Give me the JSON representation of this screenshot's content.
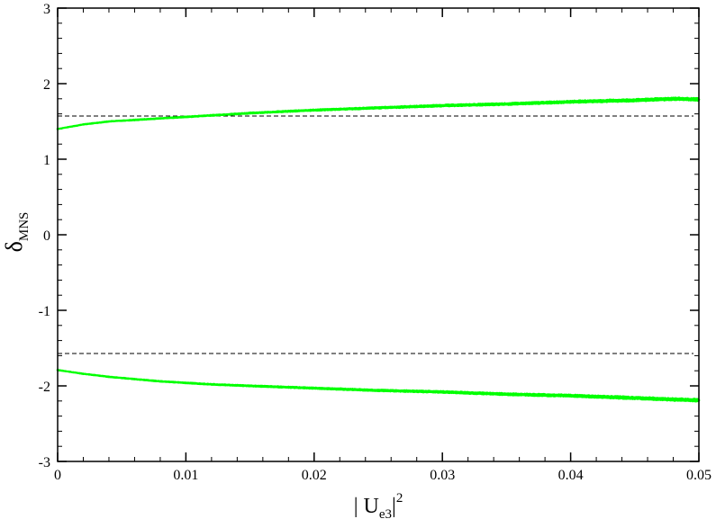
{
  "chart_data": {
    "type": "scatter",
    "title": "",
    "xlabel_main": "| U",
    "xlabel_sub": "e3",
    "xlabel_bar": "|",
    "xlabel_sup": "2",
    "ylabel_main": "δ",
    "ylabel_sub": "MNS",
    "xlim": [
      0,
      0.05
    ],
    "ylim": [
      -3,
      3
    ],
    "x_ticks": [
      0,
      0.01,
      0.02,
      0.03,
      0.04,
      0.05
    ],
    "x_tick_labels": [
      "0",
      "0.01",
      "0.02",
      "0.03",
      "0.04",
      "0.05"
    ],
    "y_ticks": [
      -3,
      -2,
      -1,
      0,
      1,
      2,
      3
    ],
    "y_tick_labels": [
      "-3",
      "-2",
      "-1",
      "0",
      "1",
      "2",
      "3"
    ],
    "x_minor_step": 0.002,
    "y_minor_step": 0.2,
    "grid": false,
    "reference_lines": [
      {
        "y": 1.5708,
        "style": "dashed",
        "color": "#000000"
      },
      {
        "y": -1.5708,
        "style": "dashed",
        "color": "#000000"
      }
    ],
    "series": [
      {
        "color": "#00ff00",
        "x": [
          0,
          0.002,
          0.004,
          0.006,
          0.008,
          0.01,
          0.012,
          0.015,
          0.02,
          0.025,
          0.03,
          0.035,
          0.04,
          0.045,
          0.048,
          0.05
        ],
        "y": [
          1.4,
          1.46,
          1.5,
          1.52,
          1.54,
          1.56,
          1.58,
          1.61,
          1.65,
          1.68,
          1.71,
          1.73,
          1.76,
          1.78,
          1.8,
          1.79
        ],
        "spread": 0.025
      },
      {
        "color": "#00ff00",
        "x": [
          0,
          0.002,
          0.004,
          0.006,
          0.008,
          0.01,
          0.012,
          0.015,
          0.02,
          0.025,
          0.03,
          0.035,
          0.04,
          0.045,
          0.048,
          0.05
        ],
        "y": [
          -1.79,
          -1.84,
          -1.88,
          -1.91,
          -1.94,
          -1.96,
          -1.98,
          -2.0,
          -2.03,
          -2.06,
          -2.08,
          -2.11,
          -2.13,
          -2.16,
          -2.18,
          -2.19
        ],
        "spread": 0.025
      }
    ]
  }
}
